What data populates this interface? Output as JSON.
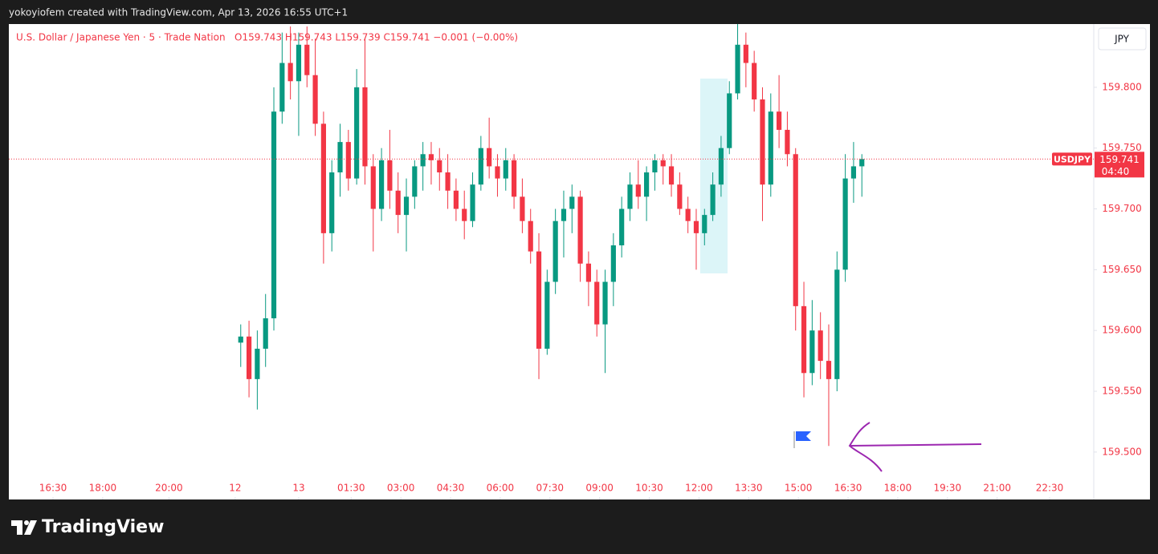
{
  "header": {
    "credit": "yokoyiofem created with TradingView.com, Apr 13, 2026 16:55 UTC+1"
  },
  "footer": {
    "brand": "TradingView"
  },
  "chart_data": {
    "type": "candlestick",
    "title": "U.S. Dollar / Japanese Yen · 5 · Trade Nation",
    "ohlc_legend": "O159.743 H159.743 L159.739 C159.741 −0.001 (−0.00%)",
    "currency_button": "JPY",
    "symbol": "USDJPY",
    "last_price": 159.741,
    "countdown": "04:40",
    "up_color": "#089981",
    "down_color": "#f23645",
    "xlim": [
      -82,
      311
    ],
    "ylim": [
      159.461,
      159.852
    ],
    "xticks": [
      {
        "value": -66,
        "label": "16:30"
      },
      {
        "value": -48,
        "label": "18:00"
      },
      {
        "value": -24,
        "label": "20:00"
      },
      {
        "value": 0,
        "label": "12"
      },
      {
        "value": 23,
        "label": "13"
      },
      {
        "value": 42,
        "label": "01:30"
      },
      {
        "value": 60,
        "label": "03:00"
      },
      {
        "value": 78,
        "label": "04:30"
      },
      {
        "value": 96,
        "label": "06:00"
      },
      {
        "value": 114,
        "label": "07:30"
      },
      {
        "value": 132,
        "label": "09:00"
      },
      {
        "value": 150,
        "label": "10:30"
      },
      {
        "value": 168,
        "label": "12:00"
      },
      {
        "value": 186,
        "label": "13:30"
      },
      {
        "value": 204,
        "label": "15:00"
      },
      {
        "value": 222,
        "label": "16:30"
      },
      {
        "value": 240,
        "label": "18:00"
      },
      {
        "value": 258,
        "label": "19:30"
      },
      {
        "value": 276,
        "label": "21:00"
      },
      {
        "value": 295,
        "label": "22:30"
      }
    ],
    "yticks": [
      {
        "value": 159.5,
        "label": "159.500"
      },
      {
        "value": 159.55,
        "label": "159.550"
      },
      {
        "value": 159.6,
        "label": "159.600"
      },
      {
        "value": 159.65,
        "label": "159.650"
      },
      {
        "value": 159.7,
        "label": "159.700"
      },
      {
        "value": 159.75,
        "label": "159.750"
      },
      {
        "value": 159.8,
        "label": "159.800"
      }
    ],
    "x": [
      2,
      5,
      8,
      11,
      14,
      17,
      20,
      23,
      26,
      29,
      32,
      35,
      38,
      41,
      44,
      47,
      50,
      53,
      56,
      59,
      62,
      65,
      68,
      71,
      74,
      77,
      80,
      83,
      86,
      89,
      92,
      95,
      98,
      101,
      104,
      107,
      110,
      113,
      116,
      119,
      122,
      125,
      128,
      131,
      134,
      137,
      140,
      143,
      146,
      149,
      152,
      155,
      158,
      161,
      164,
      167,
      170,
      173,
      176,
      179,
      182,
      185,
      188,
      191,
      194,
      197,
      200,
      203,
      206,
      209,
      212,
      215,
      218,
      221,
      224,
      227
    ],
    "open": [
      159.59,
      159.595,
      159.56,
      159.585,
      159.61,
      159.78,
      159.82,
      159.805,
      159.835,
      159.81,
      159.77,
      159.68,
      159.73,
      159.755,
      159.725,
      159.8,
      159.735,
      159.7,
      159.74,
      159.715,
      159.695,
      159.71,
      159.735,
      159.745,
      159.74,
      159.73,
      159.715,
      159.7,
      159.69,
      159.72,
      159.75,
      159.735,
      159.725,
      159.74,
      159.71,
      159.69,
      159.665,
      159.585,
      159.64,
      159.69,
      159.7,
      159.71,
      159.655,
      159.64,
      159.605,
      159.64,
      159.67,
      159.7,
      159.72,
      159.71,
      159.73,
      159.74,
      159.735,
      159.72,
      159.7,
      159.69,
      159.68,
      159.695,
      159.72,
      159.75,
      159.795,
      159.835,
      159.82,
      159.79,
      159.72,
      159.78,
      159.765,
      159.745,
      159.62,
      159.565,
      159.6,
      159.575,
      159.56,
      159.65,
      159.725,
      159.735
    ],
    "high": [
      159.605,
      159.608,
      159.6,
      159.63,
      159.8,
      159.845,
      159.85,
      159.845,
      159.85,
      159.84,
      159.78,
      159.74,
      159.77,
      159.765,
      159.815,
      159.84,
      159.745,
      159.75,
      159.765,
      159.73,
      159.725,
      159.74,
      159.755,
      159.755,
      159.75,
      159.745,
      159.725,
      159.715,
      159.73,
      159.76,
      159.775,
      159.745,
      159.75,
      159.745,
      159.725,
      159.7,
      159.68,
      159.65,
      159.7,
      159.715,
      159.72,
      159.715,
      159.665,
      159.65,
      159.65,
      159.68,
      159.71,
      159.73,
      159.74,
      159.735,
      159.745,
      159.745,
      159.745,
      159.73,
      159.71,
      159.7,
      159.7,
      159.73,
      159.76,
      159.805,
      159.852,
      159.845,
      159.83,
      159.8,
      159.795,
      159.81,
      159.78,
      159.75,
      159.64,
      159.625,
      159.615,
      159.605,
      159.665,
      159.745,
      159.755,
      159.745
    ],
    "low": [
      159.57,
      159.545,
      159.535,
      159.57,
      159.6,
      159.77,
      159.79,
      159.76,
      159.8,
      159.76,
      159.655,
      159.665,
      159.71,
      159.715,
      159.72,
      159.72,
      159.665,
      159.69,
      159.7,
      159.68,
      159.665,
      159.7,
      159.715,
      159.72,
      159.715,
      159.7,
      159.69,
      159.675,
      159.685,
      159.715,
      159.725,
      159.71,
      159.715,
      159.7,
      159.68,
      159.655,
      159.56,
      159.58,
      159.63,
      159.66,
      159.68,
      159.64,
      159.62,
      159.595,
      159.565,
      159.62,
      159.66,
      159.69,
      159.7,
      159.69,
      159.715,
      159.72,
      159.71,
      159.695,
      159.68,
      159.65,
      159.67,
      159.69,
      159.71,
      159.745,
      159.79,
      159.8,
      159.78,
      159.69,
      159.71,
      159.75,
      159.735,
      159.6,
      159.545,
      159.555,
      159.56,
      159.505,
      159.55,
      159.64,
      159.705,
      159.71
    ],
    "close": [
      159.595,
      159.56,
      159.585,
      159.61,
      159.78,
      159.82,
      159.805,
      159.835,
      159.81,
      159.77,
      159.68,
      159.73,
      159.755,
      159.725,
      159.8,
      159.735,
      159.7,
      159.74,
      159.715,
      159.695,
      159.71,
      159.735,
      159.745,
      159.74,
      159.73,
      159.715,
      159.7,
      159.69,
      159.72,
      159.75,
      159.735,
      159.725,
      159.74,
      159.71,
      159.69,
      159.665,
      159.585,
      159.64,
      159.69,
      159.7,
      159.71,
      159.655,
      159.64,
      159.605,
      159.64,
      159.67,
      159.7,
      159.72,
      159.71,
      159.73,
      159.74,
      159.735,
      159.72,
      159.7,
      159.69,
      159.68,
      159.695,
      159.72,
      159.75,
      159.795,
      159.835,
      159.82,
      159.79,
      159.72,
      159.78,
      159.765,
      159.745,
      159.62,
      159.565,
      159.6,
      159.575,
      159.56,
      159.65,
      159.725,
      159.735,
      159.741
    ]
  }
}
